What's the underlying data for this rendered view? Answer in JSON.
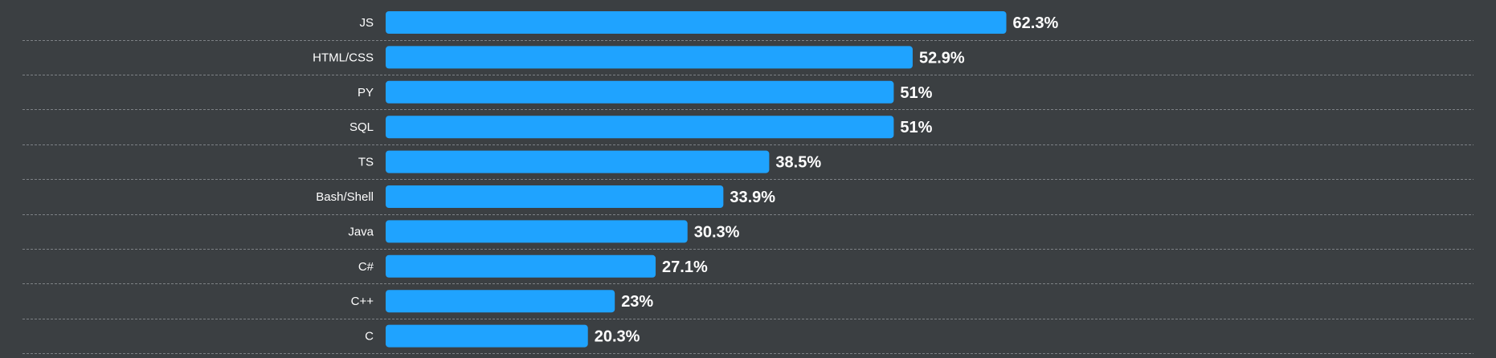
{
  "chart_data": {
    "type": "bar",
    "orientation": "horizontal",
    "categories": [
      "JS",
      "HTML/CSS",
      "PY",
      "SQL",
      "TS",
      "Bash/Shell",
      "Java",
      "C#",
      "C++",
      "C"
    ],
    "values": [
      62.3,
      52.9,
      51,
      51,
      38.5,
      33.9,
      30.3,
      27.1,
      23,
      20.3
    ],
    "value_labels": [
      "62.3%",
      "52.9%",
      "51%",
      "51%",
      "38.5%",
      "33.9%",
      "30.3%",
      "27.1%",
      "23%",
      "20.3%"
    ],
    "unit": "%",
    "xlim": [
      0,
      100
    ],
    "grid": "dashed row separators",
    "legend": "none",
    "colors": {
      "bar": "#1fa3ff",
      "background": "#3b3f42",
      "text": "#ffffff",
      "separator": "#7d8185"
    }
  }
}
